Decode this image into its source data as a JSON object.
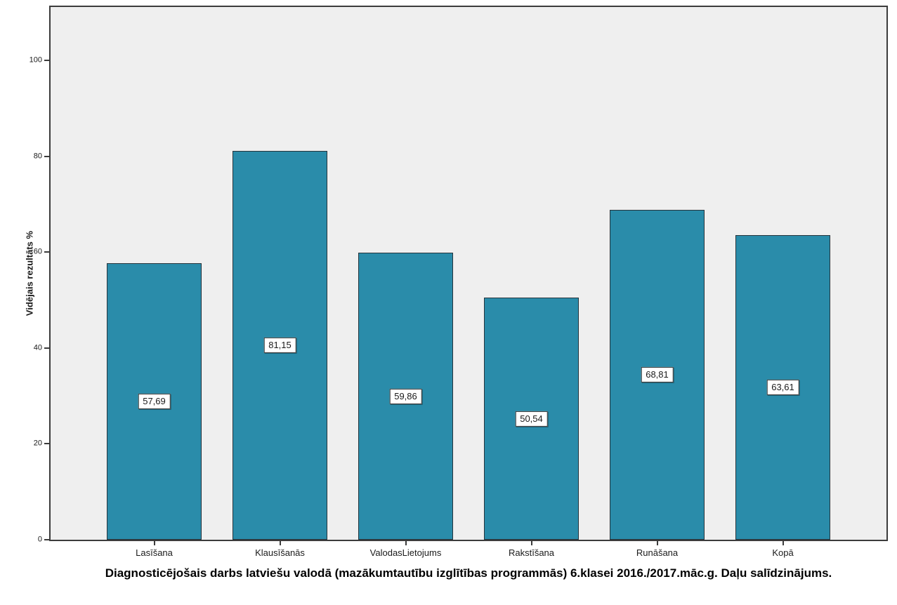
{
  "chart_data": {
    "type": "bar",
    "title": "Diagnosticējošais darbs latviešu valodā (mazākumtautību izglītības programmās) 6.klasei 2016./2017.māc.g. Daļu salīdzinājums.",
    "ylabel": "Vidējais rezultāts %",
    "xlabel": "",
    "categories": [
      "Lasīšana",
      "Klausīšanās",
      "ValodasLietojums",
      "Rakstīšana",
      "Runāšana",
      "Kopā"
    ],
    "values": [
      57.69,
      81.15,
      59.86,
      50.54,
      68.81,
      63.61
    ],
    "value_labels": [
      "57,69",
      "81,15",
      "59,86",
      "50,54",
      "68,81",
      "63,61"
    ],
    "yticks": [
      0,
      20,
      40,
      60,
      80,
      100
    ],
    "ylim": [
      0,
      111.2
    ],
    "grid": false,
    "legend_position": "none",
    "colors": {
      "bar_fill": "#2a8caa",
      "bar_border": "#26343c",
      "plot_background": "#efefef",
      "plot_border": "#3c3c3c",
      "value_label_background": "#ffffff",
      "value_label_border": "#333333",
      "text": "#1a1a1a",
      "page_background": "#ffffff"
    }
  }
}
